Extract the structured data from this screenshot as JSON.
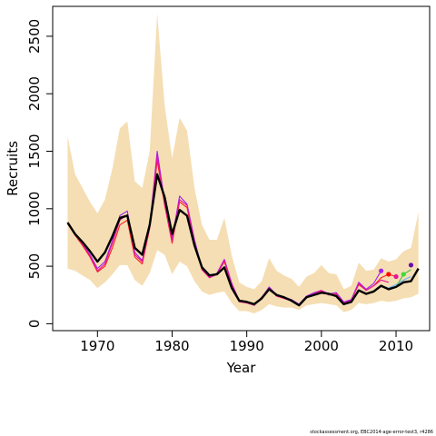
{
  "chart_data": {
    "type": "line",
    "xlabel": "Year",
    "ylabel": "Recruits",
    "xlim": [
      1964,
      2014.5
    ],
    "ylim": [
      -60,
      2760
    ],
    "xticks": [
      1970,
      1980,
      1990,
      2000,
      2010
    ],
    "yticks": [
      0,
      500,
      1000,
      1500,
      2000,
      2500
    ],
    "band_color": "#f5deb3",
    "band_x": [
      1966,
      1967,
      1968,
      1969,
      1970,
      1971,
      1972,
      1973,
      1974,
      1975,
      1976,
      1977,
      1978,
      1979,
      1980,
      1981,
      1982,
      1983,
      1984,
      1985,
      1986,
      1987,
      1988,
      1989,
      1990,
      1991,
      1992,
      1993,
      1994,
      1995,
      1996,
      1997,
      1998,
      1999,
      2000,
      2001,
      2002,
      2003,
      2004,
      2005,
      2006,
      2007,
      2008,
      2009,
      2010,
      2011,
      2012,
      2013
    ],
    "band_upper": [
      1630,
      1300,
      1180,
      1060,
      960,
      1080,
      1350,
      1700,
      1760,
      1240,
      1180,
      1500,
      2700,
      1900,
      1440,
      1790,
      1680,
      1180,
      860,
      730,
      730,
      920,
      590,
      360,
      320,
      300,
      370,
      570,
      460,
      420,
      390,
      320,
      410,
      440,
      510,
      440,
      430,
      300,
      330,
      530,
      460,
      470,
      570,
      540,
      560,
      630,
      660,
      970
    ],
    "band_lower": [
      480,
      460,
      420,
      380,
      310,
      360,
      430,
      510,
      510,
      380,
      330,
      440,
      640,
      600,
      430,
      540,
      500,
      370,
      280,
      250,
      270,
      280,
      180,
      110,
      110,
      90,
      120,
      170,
      150,
      140,
      140,
      120,
      160,
      170,
      180,
      170,
      160,
      100,
      120,
      180,
      170,
      180,
      200,
      190,
      200,
      220,
      230,
      260
    ],
    "series": [
      {
        "color": "#000000",
        "width": 2.4,
        "x": [
          1966,
          1967,
          1968,
          1969,
          1970,
          1971,
          1972,
          1973,
          1974,
          1975,
          1976,
          1977,
          1978,
          1979,
          1980,
          1981,
          1982,
          1983,
          1984,
          1985,
          1986,
          1987,
          1988,
          1989,
          1990,
          1991,
          1992,
          1993,
          1994,
          1995,
          1996,
          1997,
          1998,
          1999,
          2000,
          2001,
          2002,
          2003,
          2004,
          2005,
          2006,
          2007,
          2008,
          2009,
          2010,
          2011,
          2012,
          2013
        ],
        "y": [
          880,
          780,
          710,
          630,
          540,
          620,
          760,
          920,
          940,
          660,
          600,
          860,
          1300,
          1100,
          780,
          990,
          940,
          680,
          490,
          420,
          430,
          490,
          310,
          200,
          190,
          170,
          220,
          300,
          250,
          230,
          200,
          160,
          230,
          250,
          270,
          260,
          240,
          170,
          190,
          290,
          260,
          280,
          330,
          300,
          320,
          360,
          370,
          480
        ]
      },
      {
        "color": "#ff1e1e",
        "width": 1.1,
        "x": [
          1966,
          1967,
          1968,
          1969,
          1970,
          1971,
          1972,
          1973,
          1974,
          1975,
          1976,
          1977,
          1978,
          1979,
          1980,
          1981,
          1982,
          1983,
          1984,
          1985,
          1986,
          1987,
          1988,
          1989,
          1990,
          1991,
          1992,
          1993,
          1994,
          1995,
          1996,
          1997,
          1998,
          1999,
          2000,
          2001,
          2002,
          2003,
          2004,
          2005,
          2006,
          2007,
          2008,
          2009,
          2010
        ],
        "y": [
          870,
          770,
          680,
          580,
          450,
          500,
          660,
          860,
          900,
          580,
          520,
          830,
          1420,
          1030,
          700,
          1060,
          1010,
          700,
          470,
          400,
          430,
          540,
          340,
          200,
          190,
          160,
          230,
          310,
          240,
          220,
          200,
          160,
          230,
          260,
          280,
          250,
          260,
          180,
          210,
          340,
          290,
          330,
          400,
          430,
          410
        ]
      },
      {
        "color": "#a020f0",
        "width": 1.1,
        "x": [
          1966,
          1967,
          1968,
          1969,
          1970,
          1971,
          1972,
          1973,
          1974,
          1975,
          1976,
          1977,
          1978,
          1979,
          1980,
          1981,
          1982,
          1983,
          1984,
          1985,
          1986,
          1987,
          1988,
          1989,
          1990,
          1991,
          1992,
          1993,
          1994,
          1995,
          1996,
          1997,
          1998,
          1999,
          2000,
          2001,
          2002,
          2003,
          2004,
          2005,
          2006,
          2007,
          2008
        ],
        "y": [
          880,
          780,
          700,
          600,
          480,
          540,
          720,
          940,
          980,
          620,
          550,
          850,
          1500,
          1060,
          740,
          1110,
          1040,
          730,
          480,
          410,
          440,
          560,
          350,
          200,
          190,
          160,
          230,
          320,
          250,
          230,
          210,
          170,
          240,
          270,
          290,
          260,
          270,
          190,
          210,
          360,
          300,
          350,
          460
        ]
      },
      {
        "color": "#e6149a",
        "width": 1.1,
        "x": [
          1966,
          1967,
          1968,
          1969,
          1970,
          1971,
          1972,
          1973,
          1974,
          1975,
          1976,
          1977,
          1978,
          1979,
          1980,
          1981,
          1982,
          1983,
          1984,
          1985,
          1986,
          1987,
          1988,
          1989,
          1990,
          1991,
          1992,
          1993,
          1994,
          1995,
          1996,
          1997,
          1998,
          1999,
          2000,
          2001,
          2002,
          2003,
          2004,
          2005,
          2006,
          2007,
          2008,
          2009
        ],
        "y": [
          880,
          780,
          690,
          590,
          460,
          520,
          700,
          900,
          950,
          600,
          540,
          840,
          1460,
          1040,
          720,
          1080,
          1030,
          710,
          470,
          400,
          430,
          550,
          340,
          190,
          180,
          160,
          230,
          310,
          240,
          220,
          200,
          160,
          230,
          260,
          290,
          250,
          250,
          180,
          200,
          350,
          290,
          330,
          380,
          360
        ]
      },
      {
        "color": "#6ab0ff",
        "width": 1.1,
        "x": [
          2008,
          2009,
          2010,
          2011,
          2012
        ],
        "y": [
          330,
          310,
          340,
          380,
          410
        ]
      },
      {
        "color": "#4ab84a",
        "width": 1.1,
        "x": [
          2010,
          2011,
          2012
        ],
        "y": [
          320,
          430,
          470
        ]
      }
    ],
    "endpoints": [
      {
        "x": 2008,
        "y": 460,
        "color": "#a020f0"
      },
      {
        "x": 2009,
        "y": 430,
        "color": "#ff0000"
      },
      {
        "x": 2010,
        "y": 410,
        "color": "#e6149a"
      },
      {
        "x": 2011,
        "y": 430,
        "color": "#3cdc3c"
      },
      {
        "x": 2012,
        "y": 510,
        "color": "#6a0dad"
      }
    ]
  },
  "footer": "stockassessment.org, EBC2014-age-error-test3, r4286"
}
